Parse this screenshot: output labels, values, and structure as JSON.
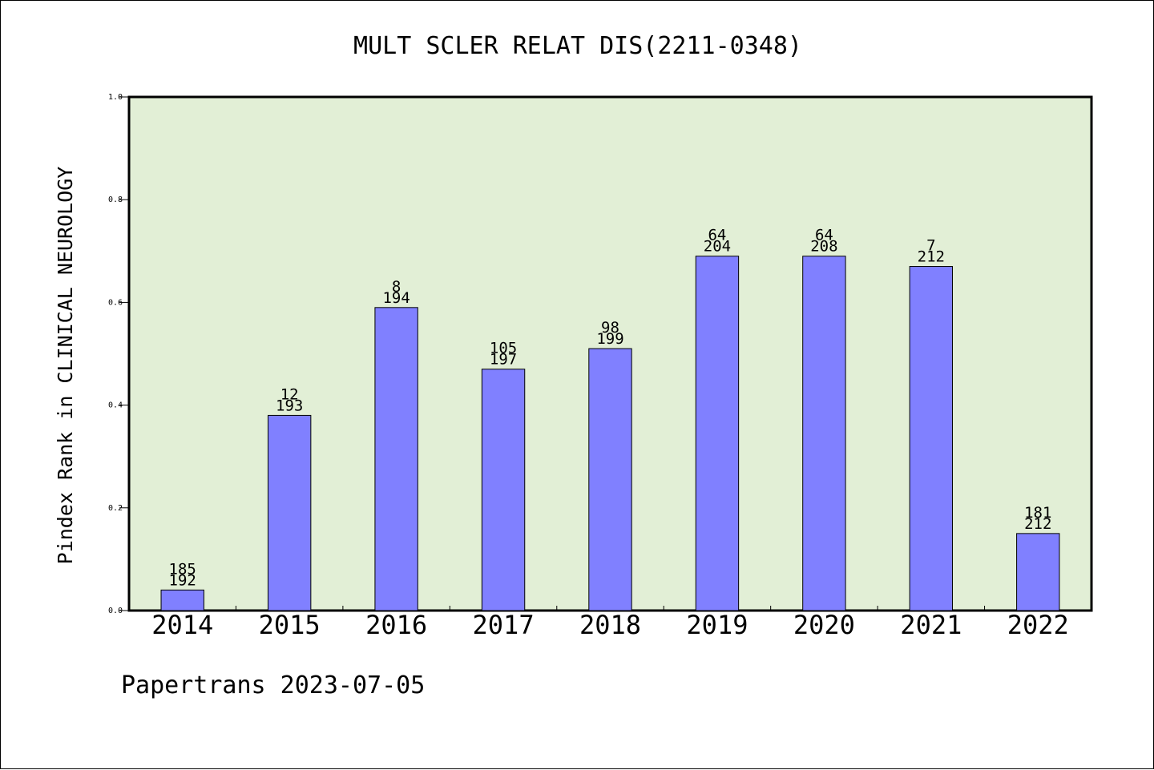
{
  "chart_data": {
    "type": "bar",
    "title": "MULT SCLER RELAT DIS(2211-0348)",
    "xlabel": "",
    "ylabel": "Pindex Rank in CLINICAL NEUROLOGY",
    "categories": [
      "2014",
      "2015",
      "2016",
      "2017",
      "2018",
      "2019",
      "2020",
      "2021",
      "2022"
    ],
    "values": [
      0.04,
      0.38,
      0.59,
      0.47,
      0.51,
      0.69,
      0.69,
      0.67,
      0.15
    ],
    "labels_top": [
      "185",
      "12",
      "8",
      "105",
      "98",
      "64",
      "64",
      "7",
      "181"
    ],
    "labels_bottom": [
      "192",
      "193",
      "194",
      "197",
      "199",
      "204",
      "208",
      "212",
      "212"
    ],
    "ylim": [
      0,
      1.0
    ],
    "yticks": [
      "0.0",
      "0.2",
      "0.4",
      "0.6",
      "0.8",
      "1.0"
    ],
    "grid": false,
    "bar_color": "#8080ff",
    "plot_background": "#e2efd6"
  },
  "footer": "Papertrans 2023-07-05"
}
